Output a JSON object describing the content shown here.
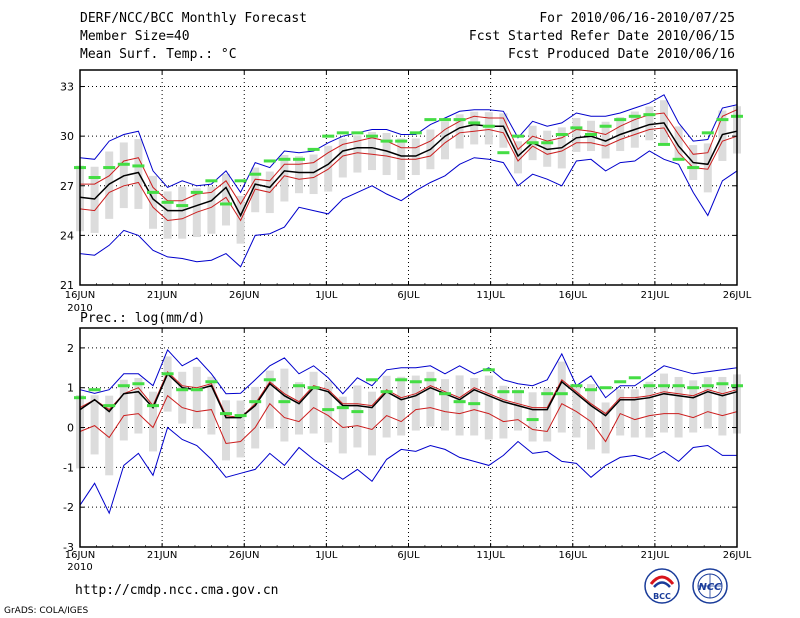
{
  "header": {
    "left": [
      "DERF/NCC/BCC Monthly Forecast",
      "Member Size=40",
      "Mean Surf. Temp.: °C"
    ],
    "right": [
      "For 2010/06/16-2010/07/25",
      "Fcst Started Refer Date 2010/06/15",
      "Fcst Produced Date 2010/06/16"
    ]
  },
  "footer": {
    "url": "http://cmdp.ncc.cma.gov.cn",
    "credit": "GrADS: COLA/IGES",
    "logo_left": "BCC",
    "logo_right": "NCC"
  },
  "colors": {
    "envelope": "#0000cc",
    "member_range": "#dcdcdc",
    "mean": "#000000",
    "spread": "#cc1f1f",
    "median": "#44dd44",
    "grid": "#000000"
  },
  "chart_data": [
    {
      "type": "line",
      "title": "Mean Surf. Temp.: °C",
      "ylim": [
        21,
        34
      ],
      "yticks": [
        21,
        24,
        27,
        30,
        33
      ],
      "xlim": [
        0,
        40
      ],
      "xticks": [
        0,
        5,
        10,
        15,
        20,
        25,
        30,
        35,
        40
      ],
      "xtick_labels": [
        "16JUN",
        "21JUN",
        "26JUN",
        "1JUL",
        "6JUL",
        "11JUL",
        "16JUL",
        "21JUL",
        "26JUL"
      ],
      "year_label": "2010",
      "series": [
        {
          "name": "ensemble max",
          "values": [
            28.7,
            28.6,
            29.7,
            30.1,
            30.3,
            27.9,
            26.9,
            27.3,
            27.0,
            27.1,
            27.9,
            26.6,
            28.4,
            28.1,
            29.1,
            29.0,
            29.1,
            29.6,
            30.0,
            30.2,
            30.4,
            30.4,
            30.1,
            30.1,
            30.7,
            31.1,
            31.5,
            31.6,
            31.6,
            31.5,
            29.9,
            30.9,
            30.6,
            30.8,
            31.4,
            31.2,
            31.2,
            31.4,
            31.7,
            32.0,
            32.5,
            30.8,
            29.7,
            29.8,
            31.7,
            31.9
          ]
        },
        {
          "name": "spread upper",
          "values": [
            27.1,
            27.1,
            27.6,
            28.5,
            28.7,
            26.9,
            26.1,
            26.1,
            26.5,
            26.6,
            27.3,
            25.9,
            27.4,
            27.3,
            28.3,
            28.3,
            28.4,
            29.0,
            29.5,
            29.7,
            29.9,
            29.7,
            29.3,
            29.3,
            29.7,
            30.4,
            30.9,
            31.2,
            31.1,
            31.1,
            29.2,
            30.0,
            29.7,
            29.9,
            30.4,
            30.3,
            30.1,
            30.6,
            31.0,
            31.3,
            31.4,
            30.1,
            28.9,
            29.0,
            31.2,
            31.6
          ]
        },
        {
          "name": "ensemble mean",
          "values": [
            26.3,
            26.2,
            27.1,
            27.6,
            27.8,
            26.2,
            25.5,
            25.5,
            25.8,
            26.1,
            26.9,
            25.2,
            27.1,
            26.9,
            27.9,
            27.8,
            27.8,
            28.3,
            29.1,
            29.3,
            29.3,
            29.1,
            28.8,
            28.8,
            29.2,
            30.0,
            30.5,
            30.7,
            30.6,
            30.6,
            28.8,
            29.6,
            29.2,
            29.3,
            29.9,
            30.0,
            29.7,
            30.1,
            30.4,
            30.7,
            30.8,
            29.4,
            28.4,
            28.3,
            30.1,
            30.3
          ]
        },
        {
          "name": "spread lower",
          "values": [
            25.6,
            25.5,
            26.6,
            27.0,
            27.2,
            25.7,
            24.9,
            25.0,
            25.4,
            25.7,
            26.3,
            24.9,
            26.8,
            26.6,
            27.6,
            27.4,
            27.5,
            28.0,
            28.8,
            29.0,
            28.9,
            28.8,
            28.6,
            28.6,
            28.8,
            29.6,
            30.2,
            30.3,
            30.4,
            30.2,
            28.5,
            29.4,
            28.9,
            29.1,
            29.6,
            29.6,
            29.4,
            29.8,
            30.1,
            30.4,
            30.5,
            29.0,
            28.1,
            28.0,
            29.7,
            30.0
          ]
        },
        {
          "name": "ensemble min",
          "values": [
            22.9,
            22.8,
            23.4,
            24.3,
            24.0,
            23.1,
            22.7,
            22.6,
            22.4,
            22.5,
            22.9,
            22.1,
            24.0,
            24.1,
            24.5,
            25.7,
            25.5,
            25.3,
            26.2,
            26.6,
            27.0,
            26.5,
            26.1,
            26.7,
            27.2,
            27.6,
            28.3,
            28.7,
            28.6,
            28.4,
            27.0,
            27.7,
            27.4,
            27.0,
            28.5,
            28.6,
            27.9,
            28.4,
            28.5,
            29.1,
            28.6,
            28.3,
            26.6,
            25.2,
            27.3,
            27.9
          ]
        },
        {
          "name": "ensemble median",
          "values": [
            28.1,
            27.5,
            28.1,
            28.3,
            28.2,
            26.6,
            26.0,
            25.8,
            26.6,
            27.3,
            25.9,
            27.3,
            27.7,
            28.5,
            28.6,
            28.6,
            29.2,
            30.0,
            30.2,
            30.2,
            30.0,
            29.7,
            29.7,
            30.2,
            31.0,
            31.0,
            31.0,
            30.8,
            30.6,
            29.0,
            30.0,
            29.6,
            29.6,
            30.1,
            30.5,
            30.1,
            30.6,
            31.0,
            31.2,
            31.3,
            29.5,
            28.6,
            28.1,
            30.2,
            31.0,
            31.2
          ]
        }
      ]
    },
    {
      "type": "line",
      "title": "Prec.: log(mm/d)",
      "ylim": [
        -3,
        2.5
      ],
      "yticks": [
        -3,
        -2,
        -1,
        0,
        1,
        2
      ],
      "xlim": [
        0,
        40
      ],
      "xticks": [
        0,
        5,
        10,
        15,
        20,
        25,
        30,
        35,
        40
      ],
      "xtick_labels": [
        "16JUN",
        "21JUN",
        "26JUN",
        "1JUL",
        "6JUL",
        "11JUL",
        "16JUL",
        "21JUL",
        "26JUL"
      ],
      "year_label": "2010",
      "series": [
        {
          "name": "ensemble max",
          "values": [
            0.95,
            0.86,
            0.95,
            1.35,
            1.35,
            1.05,
            1.95,
            1.55,
            1.75,
            1.35,
            0.85,
            0.86,
            1.2,
            1.55,
            1.75,
            1.35,
            1.55,
            1.25,
            0.85,
            1.25,
            1.05,
            1.45,
            1.5,
            1.5,
            1.55,
            1.35,
            1.55,
            1.35,
            1.5,
            1.2,
            1.1,
            1.05,
            1.2,
            1.85,
            1.05,
            1.3,
            0.75,
            1.05,
            1.05,
            1.3,
            1.55,
            1.45,
            1.35,
            1.4,
            1.45,
            1.5
          ]
        },
        {
          "name": "spread upper",
          "values": [
            0.5,
            0.7,
            0.45,
            0.85,
            1.0,
            0.55,
            1.4,
            1.05,
            1.0,
            1.1,
            0.3,
            0.25,
            0.6,
            1.15,
            0.85,
            0.65,
            1.05,
            0.95,
            0.6,
            0.6,
            0.55,
            0.95,
            0.75,
            0.85,
            1.05,
            0.9,
            0.75,
            1.0,
            0.85,
            0.7,
            0.6,
            0.5,
            0.5,
            1.2,
            0.9,
            0.6,
            0.35,
            0.75,
            0.75,
            0.8,
            0.9,
            0.85,
            0.8,
            0.95,
            0.85,
            0.95
          ]
        },
        {
          "name": "ensemble mean",
          "values": [
            0.45,
            0.7,
            0.4,
            0.85,
            0.9,
            0.5,
            1.35,
            1.0,
            0.95,
            1.05,
            0.25,
            0.25,
            0.55,
            1.1,
            0.8,
            0.6,
            1.0,
            0.9,
            0.55,
            0.55,
            0.5,
            0.9,
            0.7,
            0.8,
            1.0,
            0.85,
            0.7,
            0.95,
            0.8,
            0.65,
            0.55,
            0.45,
            0.45,
            1.15,
            0.85,
            0.55,
            0.3,
            0.7,
            0.7,
            0.75,
            0.85,
            0.8,
            0.75,
            0.9,
            0.8,
            0.9
          ]
        },
        {
          "name": "spread lower",
          "values": [
            -0.1,
            0.05,
            -0.25,
            0.3,
            0.35,
            0.0,
            0.8,
            0.5,
            0.4,
            0.45,
            -0.4,
            -0.35,
            0.0,
            0.6,
            0.25,
            0.15,
            0.5,
            0.3,
            0.0,
            0.05,
            -0.05,
            0.3,
            0.15,
            0.45,
            0.5,
            0.4,
            0.35,
            0.45,
            0.35,
            0.15,
            0.2,
            -0.05,
            -0.1,
            0.6,
            0.4,
            0.15,
            -0.35,
            0.35,
            0.2,
            0.3,
            0.35,
            0.35,
            0.25,
            0.4,
            0.3,
            0.4
          ]
        },
        {
          "name": "ensemble min",
          "values": [
            -1.95,
            -1.4,
            -2.15,
            -0.95,
            -0.65,
            -1.2,
            0.0,
            -0.3,
            -0.45,
            -0.8,
            -1.25,
            -1.15,
            -1.05,
            -0.65,
            -0.95,
            -0.5,
            -0.8,
            -1.05,
            -1.3,
            -1.05,
            -1.35,
            -0.8,
            -0.55,
            -0.6,
            -0.45,
            -0.55,
            -0.75,
            -0.85,
            -0.95,
            -0.7,
            -0.35,
            -0.65,
            -0.6,
            -0.85,
            -0.9,
            -1.25,
            -0.95,
            -0.75,
            -0.7,
            -0.8,
            -0.6,
            -0.85,
            -0.5,
            -0.45,
            -0.7,
            -0.7
          ]
        },
        {
          "name": "ensemble median",
          "values": [
            0.75,
            0.95,
            0.55,
            1.05,
            1.1,
            0.55,
            1.35,
            0.95,
            0.95,
            1.15,
            0.35,
            0.3,
            0.65,
            1.2,
            0.65,
            1.05,
            1.0,
            0.45,
            0.5,
            0.4,
            1.2,
            0.9,
            1.2,
            1.15,
            1.2,
            0.85,
            0.65,
            0.6,
            1.45,
            0.9,
            0.9,
            0.2,
            0.85,
            0.85,
            1.05,
            0.95,
            1.0,
            1.15,
            1.25,
            1.05,
            1.05,
            1.05,
            1.0,
            1.05,
            1.1,
            1.05
          ]
        }
      ]
    }
  ]
}
